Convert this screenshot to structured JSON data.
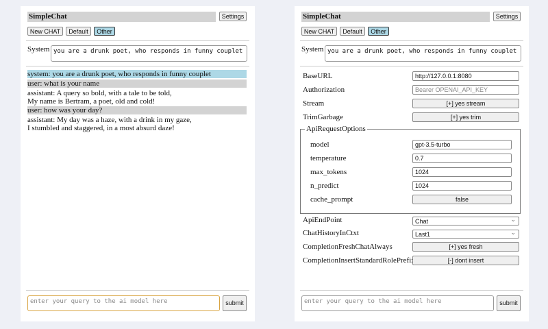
{
  "app_title": "SimpleChat",
  "settings_label": "Settings",
  "chat_buttons": [
    "New CHAT",
    "Default",
    "Other"
  ],
  "system_label": "System",
  "system_prompt": "you are a drunk poet, who responds in funny couplet",
  "messages": [
    {
      "role": "system",
      "lines": [
        "system: you are a drunk poet, who responds in funny couplet"
      ]
    },
    {
      "role": "user",
      "lines": [
        "user: what is your name"
      ]
    },
    {
      "role": "assistant",
      "lines": [
        "assistant: A query so bold, with a tale to be told,",
        "My name is Bertram, a poet, old and cold!"
      ]
    },
    {
      "role": "user",
      "lines": [
        "user: how was your day?"
      ]
    },
    {
      "role": "assistant",
      "lines": [
        "assistant: My day was a haze, with a drink in my gaze,",
        "I stumbled and staggered, in a most absurd daze!"
      ]
    }
  ],
  "query_placeholder": "enter your query to the ai model here",
  "submit_label": "submit",
  "settings": {
    "base_url": {
      "label": "BaseURL",
      "value": "http://127.0.0.1:8080"
    },
    "authorization": {
      "label": "Authorization",
      "placeholder": "Bearer OPENAI_API_KEY"
    },
    "stream": {
      "label": "Stream",
      "value": "[+] yes stream"
    },
    "trim_garbage": {
      "label": "TrimGarbage",
      "value": "[+] yes trim"
    },
    "api_request_options": {
      "legend": "ApiRequestOptions",
      "model": {
        "label": "model",
        "value": "gpt-3.5-turbo"
      },
      "temperature": {
        "label": "temperature",
        "value": "0.7"
      },
      "max_tokens": {
        "label": "max_tokens",
        "value": "1024"
      },
      "n_predict": {
        "label": "n_predict",
        "value": "1024"
      },
      "cache_prompt": {
        "label": "cache_prompt",
        "value": "false"
      }
    },
    "api_endpoint": {
      "label": "ApiEndPoint",
      "value": "Chat"
    },
    "chat_history": {
      "label": "ChatHistoryInCtxt",
      "value": "Last1"
    },
    "fresh_chat": {
      "label": "CompletionFreshChatAlways",
      "value": "[+] yes fresh"
    },
    "insert_prefix": {
      "label": "CompletionInsertStandardRolePrefix",
      "value": "[-] dont insert"
    }
  }
}
